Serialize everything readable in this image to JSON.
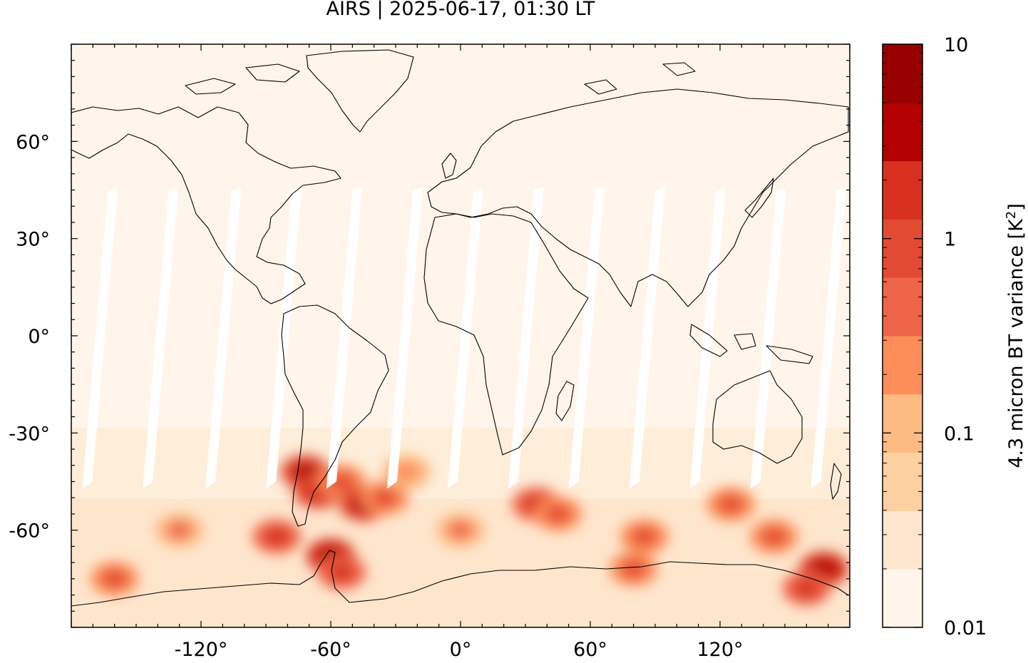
{
  "title": "AIRS | 2025-06-17, 01:30 LT",
  "map": {
    "projection": "equirectangular",
    "lon_range": [
      -180,
      180
    ],
    "lat_range": [
      -90,
      90
    ],
    "lon_ticks": [
      {
        "value": -120,
        "label": "-120°"
      },
      {
        "value": -60,
        "label": "-60°"
      },
      {
        "value": 0,
        "label": "0°"
      },
      {
        "value": 60,
        "label": "60°"
      },
      {
        "value": 120,
        "label": "120°"
      }
    ],
    "lat_ticks": [
      {
        "value": 60,
        "label": "60°"
      },
      {
        "value": 30,
        "label": "30°"
      },
      {
        "value": 0,
        "label": "0°"
      },
      {
        "value": -30,
        "label": "-30°"
      },
      {
        "value": -60,
        "label": "-60°"
      }
    ],
    "coastlines": "black"
  },
  "colorbar": {
    "label": "4.3 micron BT variance [K",
    "label_superscript": "2",
    "label_close": "]",
    "scale": "log",
    "range": [
      0.01,
      10
    ],
    "tick_labels": [
      {
        "value": 10,
        "label": "10"
      },
      {
        "value": 1,
        "label": "1"
      },
      {
        "value": 0.1,
        "label": "0.1"
      },
      {
        "value": 0.01,
        "label": "0.01"
      }
    ],
    "colors": [
      "#fff5eb",
      "#fee6ce",
      "#fdd0a2",
      "#fdbb84",
      "#fc8d59",
      "#ef6548",
      "#e34a33",
      "#d7301f",
      "#b30000",
      "#990000"
    ]
  },
  "hotspots": [
    {
      "lon": -72,
      "lat": -42,
      "value": 3.0
    },
    {
      "lon": -66,
      "lat": -48,
      "value": 2.5
    },
    {
      "lon": -55,
      "lat": -45,
      "value": 1.0
    },
    {
      "lon": -45,
      "lat": -52,
      "value": 3.0
    },
    {
      "lon": -35,
      "lat": -50,
      "value": 1.0
    },
    {
      "lon": -25,
      "lat": -42,
      "value": 0.3
    },
    {
      "lon": -85,
      "lat": -62,
      "value": 1.5
    },
    {
      "lon": -60,
      "lat": -68,
      "value": 5.0
    },
    {
      "lon": -55,
      "lat": -73,
      "value": 2.0
    },
    {
      "lon": 35,
      "lat": -52,
      "value": 1.5
    },
    {
      "lon": 45,
      "lat": -55,
      "value": 1.0
    },
    {
      "lon": 85,
      "lat": -62,
      "value": 0.8
    },
    {
      "lon": 125,
      "lat": -52,
      "value": 1.0
    },
    {
      "lon": 145,
      "lat": -62,
      "value": 0.8
    },
    {
      "lon": 168,
      "lat": -72,
      "value": 5.0
    },
    {
      "lon": 160,
      "lat": -78,
      "value": 1.5
    },
    {
      "lon": 80,
      "lat": -72,
      "value": 1.0
    },
    {
      "lon": -160,
      "lat": -75,
      "value": 1.0
    },
    {
      "lon": -130,
      "lat": -60,
      "value": 0.5
    },
    {
      "lon": 0,
      "lat": -60,
      "value": 0.5
    }
  ]
}
